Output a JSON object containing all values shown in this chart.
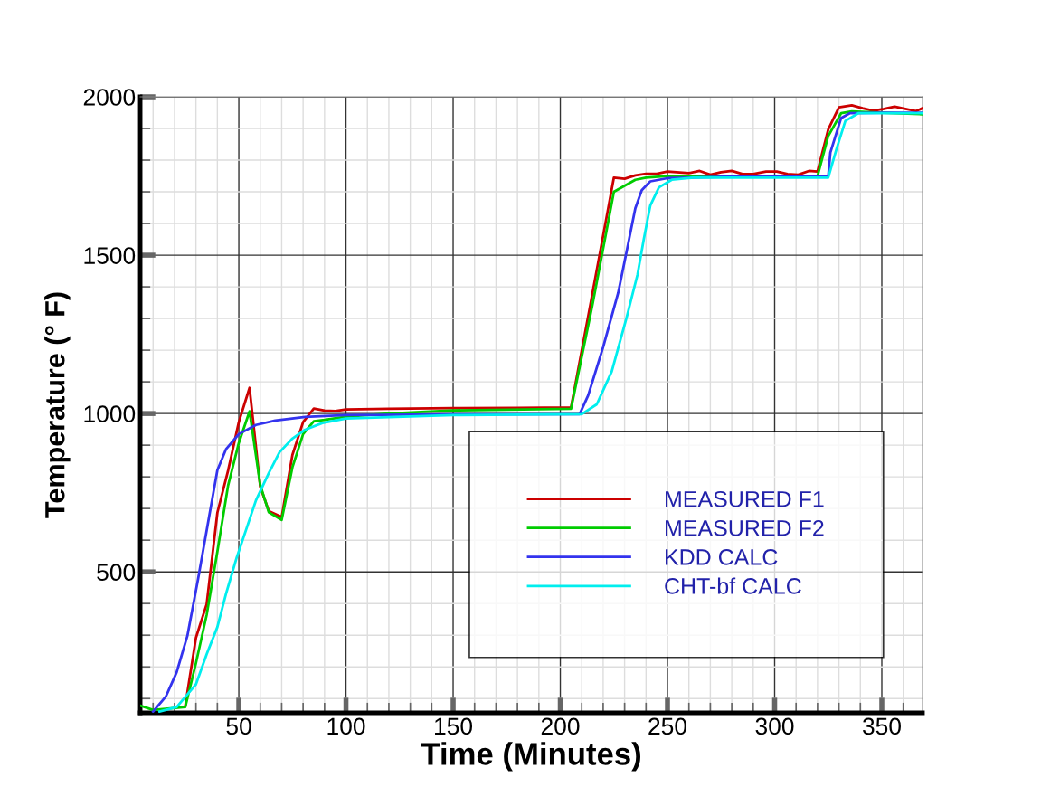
{
  "chart_data": {
    "type": "line",
    "xlabel": "Time (Minutes)",
    "ylabel": "Temperature (° F)",
    "xlim": [
      4,
      369
    ],
    "ylim": [
      55,
      2000
    ],
    "xticks": [
      {
        "value": 10,
        "label": null
      },
      {
        "value": 20,
        "label": null
      },
      {
        "value": 30,
        "label": null
      },
      {
        "value": 40,
        "label": null
      },
      50,
      {
        "value": 60,
        "label": null
      },
      {
        "value": 70,
        "label": null
      },
      {
        "value": 80,
        "label": null
      },
      {
        "value": 90,
        "label": null
      },
      100,
      {
        "value": 110,
        "label": null
      },
      {
        "value": 120,
        "label": null
      },
      {
        "value": 130,
        "label": null
      },
      {
        "value": 140,
        "label": null
      },
      150,
      {
        "value": 160,
        "label": null
      },
      {
        "value": 170,
        "label": null
      },
      {
        "value": 180,
        "label": null
      },
      {
        "value": 190,
        "label": null
      },
      200,
      {
        "value": 210,
        "label": null
      },
      {
        "value": 220,
        "label": null
      },
      {
        "value": 230,
        "label": null
      },
      {
        "value": 240,
        "label": null
      },
      250,
      {
        "value": 260,
        "label": null
      },
      {
        "value": 270,
        "label": null
      },
      {
        "value": 280,
        "label": null
      },
      {
        "value": 290,
        "label": null
      },
      300,
      {
        "value": 310,
        "label": null
      },
      {
        "value": 320,
        "label": null
      },
      {
        "value": 330,
        "label": null
      },
      {
        "value": 340,
        "label": null
      },
      350,
      {
        "value": 360,
        "label": null
      }
    ],
    "yticks": [
      {
        "value": 100,
        "label": null
      },
      {
        "value": 200,
        "label": null
      },
      {
        "value": 300,
        "label": null
      },
      {
        "value": 400,
        "label": null
      },
      500,
      {
        "value": 600,
        "label": null
      },
      {
        "value": 700,
        "label": null
      },
      {
        "value": 800,
        "label": null
      },
      {
        "value": 900,
        "label": null
      },
      1000,
      {
        "value": 1100,
        "label": null
      },
      {
        "value": 1200,
        "label": null
      },
      {
        "value": 1300,
        "label": null
      },
      {
        "value": 1400,
        "label": null
      },
      1500,
      {
        "value": 1600,
        "label": null
      },
      {
        "value": 1700,
        "label": null
      },
      {
        "value": 1800,
        "label": null
      },
      {
        "value": 1900,
        "label": null
      },
      2000
    ],
    "grid": true,
    "legend": "bottom right",
    "marker": "none",
    "line_style": "solid",
    "series": [
      {
        "name": "MEASURED F1",
        "color": "#cc0000",
        "x": [
          25,
          30,
          35,
          40,
          45,
          50,
          55,
          60,
          64,
          70,
          75,
          80,
          85,
          90,
          95,
          100,
          120,
          150,
          180,
          205,
          214,
          225,
          230,
          235,
          240,
          245,
          250,
          260,
          265,
          270,
          275,
          280,
          285,
          290,
          296,
          301,
          306,
          311,
          316,
          320,
          325,
          330,
          336,
          341,
          346,
          351,
          356,
          361,
          366,
          369
        ],
        "values": [
          76,
          292,
          398,
          687,
          820,
          973,
          1081,
          769,
          692,
          673,
          869,
          973,
          1016,
          1009,
          1008,
          1013,
          1015,
          1017,
          1018,
          1019,
          1343,
          1745,
          1741,
          1752,
          1757,
          1757,
          1764,
          1759,
          1766,
          1754,
          1762,
          1766,
          1756,
          1756,
          1764,
          1764,
          1756,
          1754,
          1766,
          1764,
          1897,
          1967,
          1973,
          1964,
          1956,
          1962,
          1969,
          1962,
          1955,
          1964
        ]
      },
      {
        "name": "MEASURED F2",
        "color": "#00cc00",
        "x": [
          4,
          10,
          25,
          30,
          35,
          40,
          45,
          50,
          55,
          60,
          64,
          70,
          75,
          80,
          85,
          90,
          100,
          120,
          150,
          205,
          215,
          225,
          235,
          240,
          250,
          320,
          325,
          331,
          336,
          350,
          369
        ],
        "values": [
          78,
          64,
          73,
          212,
          364,
          564,
          773,
          907,
          1007,
          774,
          688,
          664,
          830,
          935,
          976,
          980,
          990,
          1000,
          1010,
          1015,
          1343,
          1700,
          1738,
          1745,
          1750,
          1750,
          1876,
          1948,
          1954,
          1950,
          1945
        ]
      },
      {
        "name": "KDD CALC",
        "color": "#3333ee",
        "x": [
          10,
          16,
          21,
          26,
          31,
          36,
          40,
          44,
          50,
          58,
          67,
          81,
          100,
          150,
          209,
          213,
          220,
          227,
          231,
          235,
          238,
          242,
          250,
          280,
          325,
          326,
          331,
          335,
          350,
          369
        ],
        "values": [
          59,
          107,
          183,
          298,
          478,
          669,
          821,
          887,
          935,
          964,
          978,
          989,
          995,
          997,
          998,
          1057,
          1210,
          1381,
          1514,
          1648,
          1705,
          1733,
          1743,
          1748,
          1748,
          1824,
          1933,
          1948,
          1950,
          1950
        ]
      },
      {
        "name": "CHT-bf CALC",
        "color": "#00eeee",
        "x": [
          13,
          21,
          30,
          35,
          40,
          44,
          49,
          54,
          58,
          64,
          69,
          75,
          81,
          89,
          100,
          150,
          210,
          217,
          224,
          231,
          236,
          239,
          242,
          246,
          252,
          262,
          325,
          329,
          333,
          339,
          369
        ],
        "values": [
          59,
          73,
          145,
          240,
          326,
          430,
          545,
          645,
          726,
          812,
          878,
          921,
          949,
          970,
          984,
          995,
          998,
          1029,
          1133,
          1305,
          1438,
          1552,
          1657,
          1714,
          1738,
          1745,
          1745,
          1838,
          1924,
          1948,
          1948
        ]
      }
    ]
  }
}
